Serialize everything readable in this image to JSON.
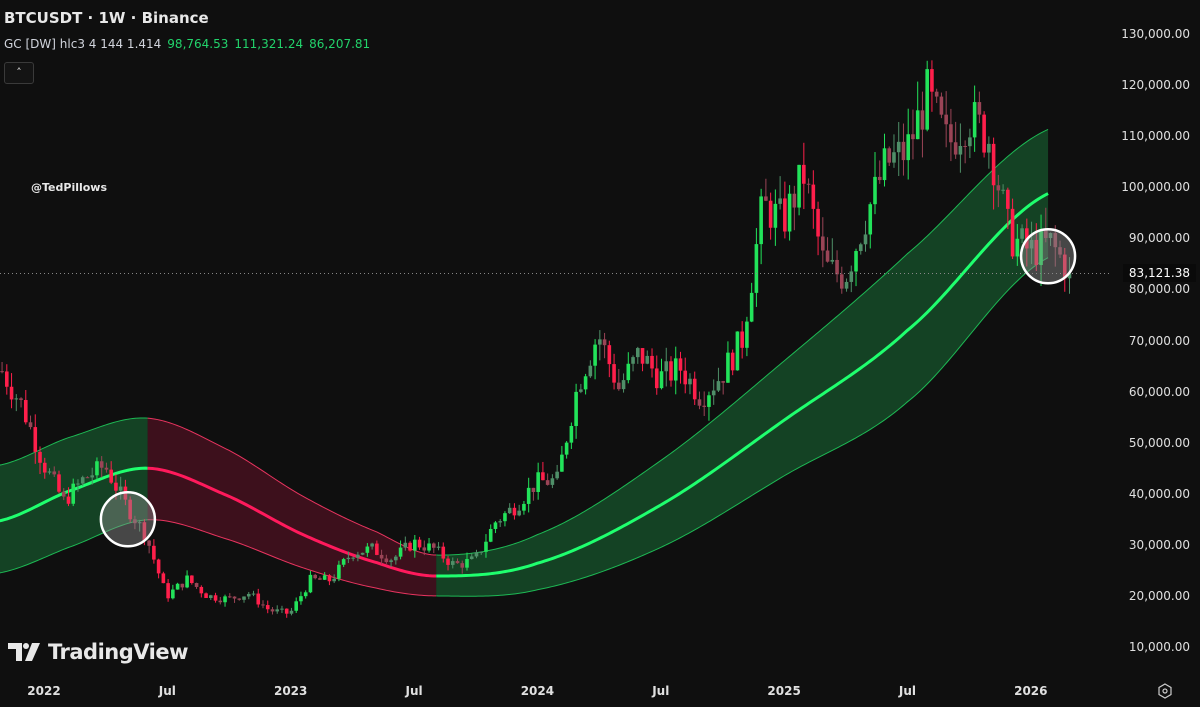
{
  "header": {
    "title": "BTCUSDT · 1W · Binance",
    "indicator_label": "GC [DW] hlc3 4 144 1.414",
    "indicator_values": [
      "98,764.53",
      "111,321.24",
      "86,207.81"
    ],
    "collapse_icon": "chevron-up-icon"
  },
  "watermark": "@TedPillows",
  "brand": "TradingView",
  "settings_icon": "gear-icon",
  "colors": {
    "up": "#22e35a",
    "down": "#ff1f4b",
    "band_up": "#1db954",
    "band_down": "#e8345f",
    "mid_up": "#1fff6e",
    "mid_down": "#ff1a5c",
    "bg": "#0f0f0f"
  },
  "chart_data": {
    "type": "candlestick",
    "title": "BTCUSDT · 1W · Binance",
    "interval": "1W",
    "ylim": [
      8000,
      134000
    ],
    "yticks": [
      10000,
      20000,
      30000,
      40000,
      50000,
      60000,
      70000,
      80000,
      90000,
      100000,
      110000,
      120000,
      130000
    ],
    "ytick_labels": [
      "10,000.00",
      "20,000.00",
      "30,000.00",
      "40,000.00",
      "50,000.00",
      "60,000.00",
      "70,000.00",
      "80,000.00",
      "90,000.00",
      "100,000.00",
      "110,000.00",
      "120,000.00",
      "130,000.00"
    ],
    "xticks": [
      2022,
      2022.5,
      2023,
      2023.5,
      2024,
      2024.5,
      2025,
      2025.5,
      2026
    ],
    "xtick_labels": [
      "2022",
      "Jul",
      "2023",
      "Jul",
      "2024",
      "Jul",
      "2025",
      "Jul",
      "2026"
    ],
    "last_price": 83121.38,
    "last_price_label": "83,121.38",
    "monthly_closes": {
      "start": 2021.83,
      "values": [
        64000,
        57000,
        46000,
        38500,
        43000,
        45500,
        38000,
        31800,
        19900,
        23300,
        20000,
        19400,
        20500,
        17200,
        16500,
        23100,
        23100,
        28500,
        29200,
        27200,
        30500,
        29200,
        26000,
        27000,
        34500,
        37700,
        42300,
        42600,
        61200,
        71300,
        60700,
        67500,
        62700,
        64600,
        59000,
        63300,
        70300,
        96400,
        93400,
        102400,
        84300,
        82500,
        94200,
        104600,
        107100,
        118000,
        108200,
        114000,
        109500,
        90400,
        87500,
        89000,
        83121
      ]
    },
    "band": {
      "name": "GC [DW] hlc3 4 144 1.414",
      "points": [
        {
          "t": 2021.82,
          "lower": 24500,
          "mid": 34700,
          "upper": 45600
        },
        {
          "t": 2022.1,
          "lower": 29500,
          "mid": 40500,
          "upper": 51000
        },
        {
          "t": 2022.42,
          "lower": 34900,
          "mid": 45000,
          "upper": 54800
        },
        {
          "t": 2022.75,
          "lower": 31000,
          "mid": 39500,
          "upper": 48500
        },
        {
          "t": 2023.05,
          "lower": 25500,
          "mid": 32000,
          "upper": 39500
        },
        {
          "t": 2023.35,
          "lower": 21500,
          "mid": 26500,
          "upper": 32500
        },
        {
          "t": 2023.59,
          "lower": 20000,
          "mid": 23900,
          "upper": 28000
        },
        {
          "t": 2024.0,
          "lower": 21200,
          "mid": 26400,
          "upper": 32000
        },
        {
          "t": 2024.5,
          "lower": 29500,
          "mid": 37800,
          "upper": 46500
        },
        {
          "t": 2025.0,
          "lower": 43500,
          "mid": 54400,
          "upper": 66000
        },
        {
          "t": 2025.5,
          "lower": 58000,
          "mid": 72000,
          "upper": 87000
        },
        {
          "t": 2026.07,
          "lower": 86207.81,
          "mid": 98764.53,
          "upper": 111321.24
        }
      ],
      "trend_change": [
        {
          "t": 2022.42,
          "to": "down"
        },
        {
          "t": 2023.59,
          "to": "up"
        }
      ]
    },
    "annotations": [
      {
        "type": "circle",
        "t": 2022.34,
        "price": 35000
      },
      {
        "type": "circle",
        "t": 2026.07,
        "price": 86500
      }
    ]
  }
}
